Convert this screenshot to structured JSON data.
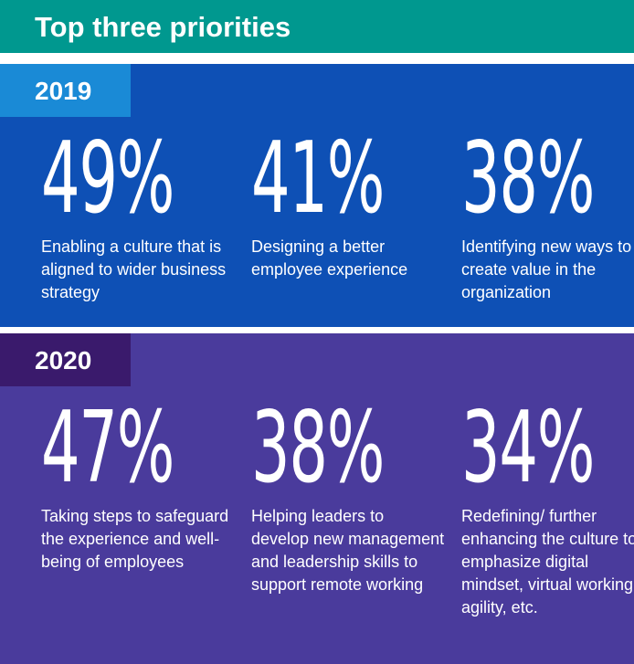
{
  "header": {
    "title": "Top three priorities"
  },
  "sections": [
    {
      "year": "2019",
      "items": [
        {
          "value": "49%",
          "text": "Enabling a culture that is aligned to wider business strategy"
        },
        {
          "value": "41%",
          "text": "Designing a better employee experience"
        },
        {
          "value": "38%",
          "text": "Identifying new ways to create value in the organization"
        }
      ]
    },
    {
      "year": "2020",
      "items": [
        {
          "value": "47%",
          "text": "Taking steps to safeguard the experience and well-being of employees"
        },
        {
          "value": "38%",
          "text": "Helping leaders to develop new management and leadership skills to support remote working"
        },
        {
          "value": "34%",
          "text": "Redefining/ further enhancing the culture to emphasize digital mindset, virtual working, agility, etc."
        }
      ]
    }
  ]
}
